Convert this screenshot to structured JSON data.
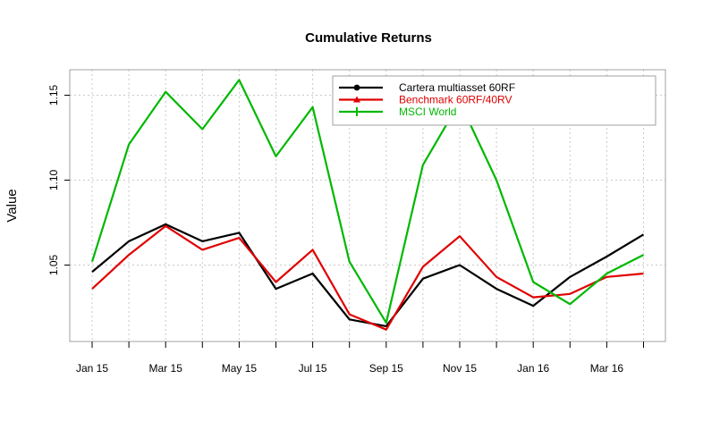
{
  "chart_data": {
    "type": "line",
    "title": "Cumulative Returns",
    "xlabel": "",
    "ylabel": "Value",
    "ylim": [
      1.005,
      1.165
    ],
    "grid": true,
    "legend_position": "top-right",
    "x": [
      "Jan 15",
      "Feb 15",
      "Mar 15",
      "Apr 15",
      "May 15",
      "Jun 15",
      "Jul 15",
      "Aug 15",
      "Sep 15",
      "Oct 15",
      "Nov 15",
      "Dec 15",
      "Jan 16",
      "Feb 16",
      "Mar 16",
      "Apr 16"
    ],
    "x_tick_labels": [
      "Jan 15",
      "Mar 15",
      "May 15",
      "Jul 15",
      "Sep 15",
      "Nov 15",
      "Jan 16",
      "Mar 16"
    ],
    "y_ticks": [
      "1.05",
      "1.10",
      "1.15"
    ],
    "series": [
      {
        "name": "Cartera multiasset 60RF",
        "color": "#000000",
        "values": [
          1.046,
          1.064,
          1.074,
          1.064,
          1.069,
          1.036,
          1.045,
          1.018,
          1.014,
          1.042,
          1.05,
          1.036,
          1.026,
          1.043,
          1.055,
          1.068
        ]
      },
      {
        "name": "Benchmark 60RF/40RV",
        "color": "#e00000",
        "values": [
          1.036,
          1.056,
          1.073,
          1.059,
          1.066,
          1.04,
          1.059,
          1.021,
          1.012,
          1.049,
          1.067,
          1.043,
          1.031,
          1.033,
          1.043,
          1.045
        ]
      },
      {
        "name": "MSCI World",
        "color": "#00b800",
        "values": [
          1.052,
          1.121,
          1.152,
          1.13,
          1.159,
          1.114,
          1.143,
          1.052,
          1.016,
          1.109,
          1.146,
          1.1,
          1.04,
          1.027,
          1.045,
          1.056
        ]
      }
    ]
  }
}
